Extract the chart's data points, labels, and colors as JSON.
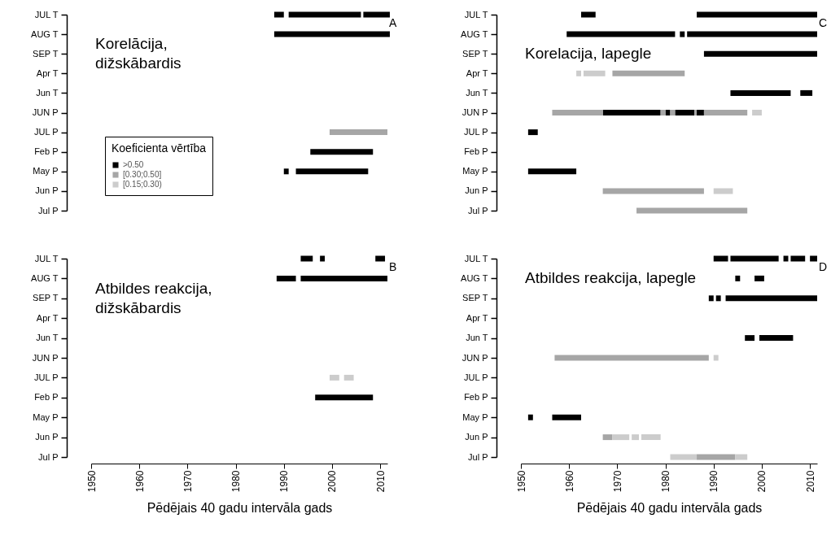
{
  "chart_data": [
    {
      "type": "bar",
      "orientation": "horizontal",
      "categories": [
        "JUL T",
        "AUG T",
        "SEP T",
        "Apr T",
        "Jun T",
        "JUN P",
        "JUL P",
        "Feb P",
        "May P",
        "Jun P",
        "Jul P"
      ],
      "xlim": [
        1950,
        2011.5
      ],
      "xticks": [
        1950,
        1960,
        1970,
        1980,
        1990,
        2000,
        2010
      ],
      "tick_labels": "y",
      "legend": "bottom left",
      "legend_title": "Koeficienta vērtība",
      "annotations": [
        "Korelācija,\ndižskābardis",
        "A"
      ],
      "series": [
        {
          "name": ">0.50",
          "color": "#000000",
          "base": [
            1988,
            1988,
            null,
            null,
            null,
            null,
            null,
            1995.5,
            1990,
            null,
            null
          ],
          "values": [
            2,
            24,
            null,
            null,
            null,
            null,
            null,
            13,
            1,
            null,
            null
          ]
        },
        {
          "name": "[0.30;0.50]",
          "color": "#a6a6a6",
          "base": [
            null,
            null,
            null,
            null,
            null,
            null,
            1999.5,
            null,
            null,
            null,
            null
          ],
          "values": [
            null,
            null,
            null,
            null,
            null,
            null,
            12,
            null,
            null,
            null,
            null
          ]
        },
        {
          "name": "[0.15;0.30)",
          "color": "#cccccc",
          "base": [
            null,
            null,
            null,
            null,
            null,
            null,
            null,
            null,
            null,
            null,
            null
          ],
          "values": [
            null,
            null,
            null,
            null,
            null,
            null,
            null,
            null,
            null,
            null,
            null
          ]
        },
        {
          "color": "#000000",
          "base": [
            1991,
            null,
            null,
            null,
            null,
            null,
            null,
            null,
            1992.5,
            null,
            null
          ],
          "values": [
            15,
            null,
            null,
            null,
            null,
            null,
            null,
            null,
            15,
            null,
            null
          ]
        },
        {
          "color": "#000000",
          "base": [
            2006.5,
            null,
            null,
            null,
            null,
            null,
            null,
            null,
            null,
            null,
            null
          ],
          "values": [
            5.5,
            null,
            null,
            null,
            null,
            null,
            null,
            null,
            null,
            null,
            null
          ]
        }
      ]
    },
    {
      "type": "bar",
      "orientation": "horizontal",
      "categories": [
        "JUL T",
        "AUG T",
        "SEP T",
        "Apr T",
        "Jun T",
        "JUN P",
        "JUL P",
        "Feb P",
        "May P",
        "Jun P",
        "Jul P"
      ],
      "xlim": [
        1950,
        2011.5
      ],
      "xticks": [
        1950,
        1960,
        1970,
        1980,
        1990,
        2000,
        2010
      ],
      "tick_labels": "y",
      "annotations": [
        "Korelacija, lapegle",
        "C"
      ],
      "series": [
        {
          "color": "#000000",
          "base": [
            1962.5,
            1959.5,
            1988,
            null,
            1993.5,
            1967,
            1951.5,
            null,
            1951.5,
            null,
            null
          ],
          "values": [
            3,
            22.5,
            23.5,
            null,
            12.5,
            12,
            2,
            null,
            10,
            null,
            null
          ]
        },
        {
          "color": "#000000",
          "base": [
            1986.5,
            1983,
            null,
            null,
            2008,
            1980,
            null,
            null,
            null,
            null,
            null
          ],
          "values": [
            25,
            1,
            null,
            null,
            2.5,
            1,
            null,
            null,
            null,
            null,
            null
          ]
        },
        {
          "color": "#000000",
          "base": [
            null,
            1984.5,
            null,
            null,
            null,
            1982,
            null,
            null,
            null,
            null,
            null
          ],
          "values": [
            null,
            27,
            null,
            null,
            null,
            4,
            null,
            null,
            null,
            null,
            null
          ]
        },
        {
          "color": "#000000",
          "base": [
            null,
            null,
            null,
            null,
            null,
            1986.5,
            null,
            null,
            null,
            null,
            null
          ],
          "values": [
            null,
            null,
            null,
            null,
            null,
            1.5,
            null,
            null,
            null,
            null,
            null
          ]
        },
        {
          "color": "#a6a6a6",
          "base": [
            null,
            null,
            null,
            1969,
            null,
            1956.5,
            null,
            null,
            null,
            1967,
            1974
          ],
          "values": [
            null,
            null,
            null,
            15,
            null,
            10.5,
            null,
            null,
            null,
            21,
            23
          ]
        },
        {
          "color": "#a6a6a6",
          "base": [
            null,
            null,
            null,
            null,
            null,
            1979,
            null,
            null,
            null,
            null,
            null
          ],
          "values": [
            null,
            null,
            null,
            null,
            null,
            1,
            null,
            null,
            null,
            null,
            null
          ]
        },
        {
          "color": "#a6a6a6",
          "base": [
            null,
            null,
            null,
            null,
            null,
            1981,
            null,
            null,
            null,
            null,
            null
          ],
          "values": [
            null,
            null,
            null,
            null,
            null,
            1,
            null,
            null,
            null,
            null,
            null
          ]
        },
        {
          "color": "#a6a6a6",
          "base": [
            null,
            null,
            null,
            null,
            null,
            1986,
            null,
            null,
            null,
            null,
            null
          ],
          "values": [
            null,
            null,
            null,
            null,
            null,
            0.5,
            null,
            null,
            null,
            null,
            null
          ]
        },
        {
          "color": "#a6a6a6",
          "base": [
            null,
            null,
            null,
            null,
            null,
            1988,
            null,
            null,
            null,
            null,
            null
          ],
          "values": [
            null,
            null,
            null,
            null,
            null,
            9,
            null,
            null,
            null,
            null,
            null
          ]
        },
        {
          "color": "#cccccc",
          "base": [
            null,
            null,
            null,
            1961.5,
            null,
            1998,
            null,
            null,
            null,
            1990,
            null
          ],
          "values": [
            null,
            null,
            null,
            1,
            null,
            2,
            null,
            null,
            null,
            4,
            null
          ]
        },
        {
          "color": "#cccccc",
          "base": [
            null,
            null,
            null,
            1963,
            null,
            null,
            null,
            null,
            null,
            null,
            null
          ],
          "values": [
            null,
            null,
            null,
            4.5,
            null,
            null,
            null,
            null,
            null,
            null,
            null
          ]
        }
      ]
    },
    {
      "type": "bar",
      "orientation": "horizontal",
      "categories": [
        "JUL T",
        "AUG T",
        "SEP T",
        "Apr T",
        "Jun T",
        "JUN P",
        "JUL P",
        "Feb P",
        "May P",
        "Jun P",
        "Jul P"
      ],
      "xlim": [
        1950,
        2011.5
      ],
      "xticks": [
        1950,
        1960,
        1970,
        1980,
        1990,
        2000,
        2010
      ],
      "xlabel": "Pēdējais 40 gadu intervāla gads",
      "annotations": [
        "Atbildes reakcija,\ndižskābardis",
        "B"
      ],
      "series": [
        {
          "color": "#000000",
          "base": [
            1993.5,
            1988.5,
            null,
            null,
            null,
            null,
            null,
            1996.5,
            null,
            null,
            null
          ],
          "values": [
            2.5,
            4,
            null,
            null,
            null,
            null,
            null,
            12,
            null,
            null,
            null
          ]
        },
        {
          "color": "#000000",
          "base": [
            1997.5,
            1993.5,
            null,
            null,
            null,
            null,
            null,
            null,
            null,
            null,
            null
          ],
          "values": [
            1,
            18,
            null,
            null,
            null,
            null,
            null,
            null,
            null,
            null,
            null
          ]
        },
        {
          "color": "#000000",
          "base": [
            2009,
            null,
            null,
            null,
            null,
            null,
            null,
            null,
            null,
            null,
            null
          ],
          "values": [
            2,
            null,
            null,
            null,
            null,
            null,
            null,
            null,
            null,
            null,
            null
          ]
        },
        {
          "color": "#cccccc",
          "base": [
            null,
            null,
            null,
            null,
            null,
            null,
            1999.5,
            null,
            null,
            null,
            null
          ],
          "values": [
            null,
            null,
            null,
            null,
            null,
            null,
            2,
            null,
            null,
            null,
            null
          ]
        },
        {
          "color": "#cccccc",
          "base": [
            null,
            null,
            null,
            null,
            null,
            null,
            2002.5,
            null,
            null,
            null,
            null
          ],
          "values": [
            null,
            null,
            null,
            null,
            null,
            null,
            2,
            null,
            null,
            null,
            null
          ]
        }
      ]
    },
    {
      "type": "bar",
      "orientation": "horizontal",
      "categories": [
        "JUL T",
        "AUG T",
        "SEP T",
        "Apr T",
        "Jun T",
        "JUN P",
        "JUL P",
        "Feb P",
        "May P",
        "Jun P",
        "Jul P"
      ],
      "xlim": [
        1950,
        2011.5
      ],
      "xticks": [
        1950,
        1960,
        1970,
        1980,
        1990,
        2000,
        2010
      ],
      "xlabel": "Pēdējais 40 gadu intervāla gads",
      "annotations": [
        "Atbildes reakcija, lapegle",
        "D"
      ],
      "series": [
        {
          "color": "#000000",
          "base": [
            1990,
            1994.5,
            1989,
            null,
            1996.5,
            null,
            null,
            null,
            1951.5,
            null,
            null
          ],
          "values": [
            3,
            1,
            1,
            null,
            2,
            null,
            null,
            null,
            1,
            null,
            null
          ]
        },
        {
          "color": "#000000",
          "base": [
            1993.5,
            1998.5,
            1990.5,
            null,
            1999.5,
            null,
            null,
            null,
            1956.5,
            null,
            null
          ],
          "values": [
            10,
            2,
            1,
            null,
            7,
            null,
            null,
            null,
            6,
            null,
            null
          ]
        },
        {
          "color": "#000000",
          "base": [
            2004.5,
            null,
            1992.5,
            null,
            null,
            null,
            null,
            null,
            null,
            null,
            null
          ],
          "values": [
            1,
            null,
            19,
            null,
            null,
            null,
            null,
            null,
            null,
            null,
            null
          ]
        },
        {
          "color": "#000000",
          "base": [
            2006,
            null,
            null,
            null,
            null,
            null,
            null,
            null,
            null,
            null,
            null
          ],
          "values": [
            3,
            null,
            null,
            null,
            null,
            null,
            null,
            null,
            null,
            null,
            null
          ]
        },
        {
          "color": "#000000",
          "base": [
            2010,
            null,
            null,
            null,
            null,
            null,
            null,
            null,
            null,
            null,
            null
          ],
          "values": [
            1.5,
            null,
            null,
            null,
            null,
            null,
            null,
            null,
            null,
            null,
            null
          ]
        },
        {
          "color": "#a6a6a6",
          "base": [
            null,
            null,
            null,
            null,
            null,
            1957,
            null,
            null,
            null,
            1967,
            1986.5
          ],
          "values": [
            null,
            null,
            null,
            null,
            null,
            32,
            null,
            null,
            null,
            2,
            8
          ]
        },
        {
          "color": "#cccccc",
          "base": [
            null,
            null,
            null,
            null,
            null,
            1990,
            null,
            null,
            null,
            1969,
            1981
          ],
          "values": [
            null,
            null,
            null,
            null,
            null,
            1,
            null,
            null,
            null,
            3.5,
            5.5
          ]
        },
        {
          "color": "#cccccc",
          "base": [
            null,
            null,
            null,
            null,
            null,
            null,
            null,
            null,
            null,
            1973,
            1994.5
          ],
          "values": [
            null,
            null,
            null,
            null,
            null,
            null,
            null,
            null,
            null,
            1.5,
            2.5
          ]
        },
        {
          "color": "#cccccc",
          "base": [
            null,
            null,
            null,
            null,
            null,
            null,
            null,
            null,
            null,
            1975,
            null
          ],
          "values": [
            null,
            null,
            null,
            null,
            null,
            null,
            null,
            null,
            null,
            4,
            null
          ]
        }
      ]
    }
  ]
}
